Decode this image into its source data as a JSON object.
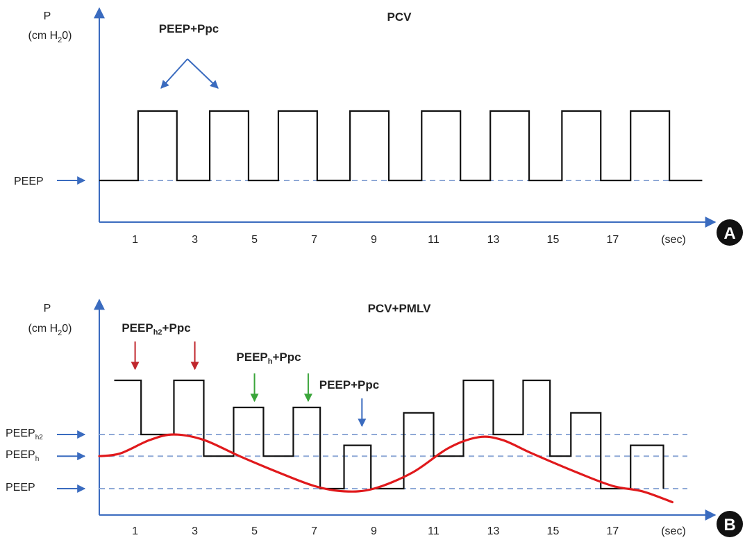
{
  "chart_data": [
    {
      "panel": "A",
      "type": "line",
      "title": "PCV",
      "ylabel_top": "P",
      "ylabel_bottom_prefix": "(cm H",
      "ylabel_sub": "2",
      "ylabel_bottom_suffix": "0)",
      "x_ticks": [
        "1",
        "3",
        "5",
        "7",
        "9",
        "11",
        "13",
        "15",
        "17"
      ],
      "x_unit": "(sec)",
      "xlim": [
        -0.2,
        20.2
      ],
      "baselines": [
        {
          "name": "PEEP",
          "level": 0,
          "prefix": "PEEP",
          "sub": ""
        }
      ],
      "annotation": {
        "text": "PEEP+Ppc",
        "points_to_pulses": [
          1,
          2
        ]
      },
      "pulses": [
        {
          "start": 1.1,
          "end": 2.4,
          "level": 1.0
        },
        {
          "start": 3.5,
          "end": 4.8,
          "level": 1.0
        },
        {
          "start": 5.8,
          "end": 7.1,
          "level": 1.0
        },
        {
          "start": 8.2,
          "end": 9.5,
          "level": 1.0
        },
        {
          "start": 10.6,
          "end": 11.9,
          "level": 1.0
        },
        {
          "start": 12.9,
          "end": 14.2,
          "level": 1.0
        },
        {
          "start": 15.3,
          "end": 16.6,
          "level": 1.0
        },
        {
          "start": 17.6,
          "end": 18.9,
          "level": 1.0
        }
      ],
      "x_end": 20.0,
      "badge": "A",
      "color_pressure": "#111111",
      "color_axis": "#3a6bbf",
      "color_dashed": "#8fa9d6"
    },
    {
      "panel": "B",
      "type": "line",
      "title": "PCV+PMLV",
      "ylabel_top": "P",
      "ylabel_bottom_prefix": "(cm H",
      "ylabel_sub": "2",
      "ylabel_bottom_suffix": "0)",
      "x_ticks": [
        "1",
        "3",
        "5",
        "7",
        "9",
        "11",
        "13",
        "15",
        "17"
      ],
      "x_unit": "(sec)",
      "xlim": [
        -0.2,
        20.2
      ],
      "baselines": [
        {
          "name": "PEEPh2",
          "level": 1.0,
          "prefix": "PEEP",
          "sub": "h2"
        },
        {
          "name": "PEEPh",
          "level": 0.6,
          "prefix": "PEEP",
          "sub": "h"
        },
        {
          "name": "PEEP",
          "level": 0.0,
          "prefix": "PEEP",
          "sub": ""
        }
      ],
      "annotations": [
        {
          "prefix": "PEEP",
          "sub": "h2",
          "suffix": "+Ppc",
          "arrow_color": "#c0272d",
          "arrows_at": [
            1.0,
            3.0
          ]
        },
        {
          "prefix": "PEEP",
          "sub": "h",
          "suffix": "+Ppc",
          "arrow_color": "#3aa53a",
          "arrows_at": [
            5.0,
            6.8
          ]
        },
        {
          "prefix": "PEEP",
          "sub": "",
          "suffix": "+Ppc",
          "arrow_color": "#3a6bbf",
          "arrows_at": [
            8.6
          ]
        }
      ],
      "step_trace": [
        [
          0.3,
          2.0
        ],
        [
          1.2,
          2.0
        ],
        [
          1.2,
          1.0
        ],
        [
          2.3,
          1.0
        ],
        [
          2.3,
          2.0
        ],
        [
          3.3,
          2.0
        ],
        [
          3.3,
          0.6
        ],
        [
          4.3,
          0.6
        ],
        [
          4.3,
          1.5
        ],
        [
          5.3,
          1.5
        ],
        [
          5.3,
          0.6
        ],
        [
          6.3,
          0.6
        ],
        [
          6.3,
          1.5
        ],
        [
          7.2,
          1.5
        ],
        [
          7.2,
          0.0
        ],
        [
          8.0,
          0.0
        ],
        [
          8.0,
          0.8
        ],
        [
          8.9,
          0.8
        ],
        [
          8.9,
          0.0
        ],
        [
          10.0,
          0.0
        ],
        [
          10.0,
          1.4
        ],
        [
          11.0,
          1.4
        ],
        [
          11.0,
          0.6
        ],
        [
          12.0,
          0.6
        ],
        [
          12.0,
          2.0
        ],
        [
          13.0,
          2.0
        ],
        [
          13.0,
          1.0
        ],
        [
          14.0,
          1.0
        ],
        [
          14.0,
          2.0
        ],
        [
          14.9,
          2.0
        ],
        [
          14.9,
          0.6
        ],
        [
          15.6,
          0.6
        ],
        [
          15.6,
          1.4
        ],
        [
          16.6,
          1.4
        ],
        [
          16.6,
          0.0
        ],
        [
          17.6,
          0.0
        ],
        [
          17.6,
          0.8
        ],
        [
          18.7,
          0.8
        ],
        [
          18.7,
          0.0
        ]
      ],
      "smooth_curve": [
        [
          -0.2,
          0.6
        ],
        [
          0.5,
          0.65
        ],
        [
          1.5,
          0.9
        ],
        [
          2.3,
          1.0
        ],
        [
          3.3,
          0.9
        ],
        [
          4.5,
          0.6
        ],
        [
          5.8,
          0.3
        ],
        [
          7.0,
          0.05
        ],
        [
          8.0,
          -0.05
        ],
        [
          9.0,
          0.0
        ],
        [
          10.3,
          0.3
        ],
        [
          11.5,
          0.75
        ],
        [
          12.5,
          0.95
        ],
        [
          13.3,
          0.9
        ],
        [
          14.3,
          0.65
        ],
        [
          15.8,
          0.3
        ],
        [
          17.0,
          0.05
        ],
        [
          18.0,
          -0.05
        ],
        [
          19.0,
          -0.25
        ]
      ],
      "badge": "B",
      "color_pressure": "#111111",
      "color_curve": "#e0191c",
      "color_axis": "#3a6bbf",
      "color_dashed": "#8fa9d6"
    }
  ]
}
